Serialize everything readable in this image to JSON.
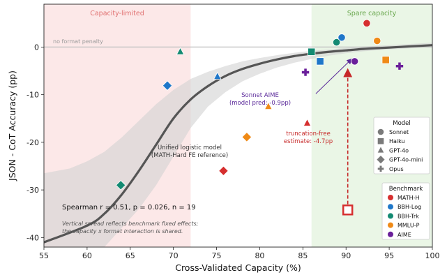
{
  "chart_data": {
    "type": "scatter",
    "xlabel": "Cross-Validated Capacity (%)",
    "ylabel": "JSON - CoT Accuracy (pp)",
    "xlim": [
      55,
      100
    ],
    "ylim": [
      -42,
      9
    ],
    "xticks": [
      55,
      60,
      65,
      70,
      75,
      80,
      85,
      90,
      95,
      100
    ],
    "yticks": [
      0,
      -10,
      -20,
      -30,
      -40
    ],
    "grid": false,
    "regions": [
      {
        "label": "Capacity-limited",
        "x_range": [
          55,
          72
        ],
        "color": "#fce8e8",
        "text_color": "#e07070"
      },
      {
        "label": "Spare capacity",
        "x_range": [
          86,
          100
        ],
        "color": "#eaf6e6",
        "text_color": "#6aa84f"
      }
    ],
    "reference_line": {
      "y": 0,
      "label": "no format penalty"
    },
    "fit_curve": {
      "label_line1": "Unified logistic model",
      "label_line2": "(MATH-Hard FE reference)",
      "points": [
        [
          55,
          -41
        ],
        [
          60,
          -37.5
        ],
        [
          62,
          -35
        ],
        [
          64,
          -31
        ],
        [
          66,
          -26
        ],
        [
          68,
          -20.5
        ],
        [
          70,
          -15
        ],
        [
          72,
          -11
        ],
        [
          74,
          -8.2
        ],
        [
          76,
          -6.1
        ],
        [
          78,
          -4.6
        ],
        [
          80,
          -3.5
        ],
        [
          82,
          -2.6
        ],
        [
          84,
          -1.9
        ],
        [
          86,
          -1.4
        ],
        [
          88,
          -1.0
        ],
        [
          90,
          -0.7
        ],
        [
          92,
          -0.4
        ],
        [
          94,
          -0.2
        ],
        [
          96,
          0.0
        ],
        [
          98,
          0.2
        ],
        [
          100,
          0.4
        ]
      ],
      "band_upper": [
        [
          55,
          -26.5
        ],
        [
          58,
          -25.5
        ],
        [
          60,
          -24
        ],
        [
          62,
          -22
        ],
        [
          64,
          -19
        ],
        [
          66,
          -15.5
        ],
        [
          68,
          -12
        ],
        [
          70,
          -9
        ],
        [
          72,
          -6.7
        ],
        [
          74,
          -5.2
        ],
        [
          76,
          -4
        ],
        [
          78,
          -3
        ],
        [
          80,
          -2.3
        ],
        [
          82,
          -1.7
        ],
        [
          84,
          -1.2
        ],
        [
          86,
          -0.8
        ],
        [
          88,
          -0.5
        ],
        [
          90,
          -0.2
        ],
        [
          92,
          0.1
        ],
        [
          94,
          0.3
        ],
        [
          96,
          0.5
        ],
        [
          98,
          0.7
        ],
        [
          100,
          0.9
        ]
      ],
      "band_lower": [
        [
          55,
          -42
        ],
        [
          60,
          -42
        ],
        [
          62,
          -42
        ],
        [
          63,
          -40
        ],
        [
          64,
          -38
        ],
        [
          66,
          -34
        ],
        [
          68,
          -29
        ],
        [
          70,
          -23
        ],
        [
          72,
          -17
        ],
        [
          74,
          -12.5
        ],
        [
          76,
          -9.5
        ],
        [
          78,
          -7.2
        ],
        [
          80,
          -5.6
        ],
        [
          82,
          -4.3
        ],
        [
          84,
          -3.3
        ],
        [
          86,
          -2.5
        ],
        [
          88,
          -1.8
        ],
        [
          90,
          -1.3
        ],
        [
          92,
          -0.9
        ],
        [
          94,
          -0.6
        ],
        [
          96,
          -0.4
        ],
        [
          98,
          -0.2
        ],
        [
          100,
          0.0
        ]
      ]
    },
    "models": [
      {
        "name": "Sonnet",
        "marker": "circle"
      },
      {
        "name": "Haiku",
        "marker": "square"
      },
      {
        "name": "GPT-4o",
        "marker": "triangle"
      },
      {
        "name": "GPT-4o-mini",
        "marker": "diamond"
      },
      {
        "name": "Opus",
        "marker": "plus"
      }
    ],
    "benchmarks": [
      {
        "name": "MATH-H",
        "color": "#d62f2f"
      },
      {
        "name": "BBH-Log",
        "color": "#1f77c9"
      },
      {
        "name": "BBH-Trk",
        "color": "#138a72"
      },
      {
        "name": "MMLU-P",
        "color": "#ef8a17"
      },
      {
        "name": "AIME",
        "color": "#6a1f9a"
      }
    ],
    "points": [
      {
        "x": 92.4,
        "y": 5.0,
        "model": "Sonnet",
        "benchmark": "MATH-H"
      },
      {
        "x": 89.5,
        "y": 2.0,
        "model": "Sonnet",
        "benchmark": "BBH-Log"
      },
      {
        "x": 88.9,
        "y": 1.0,
        "model": "Sonnet",
        "benchmark": "BBH-Trk"
      },
      {
        "x": 93.6,
        "y": 1.3,
        "model": "Sonnet",
        "benchmark": "MMLU-P"
      },
      {
        "x": 91.0,
        "y": -3.0,
        "model": "Sonnet",
        "benchmark": "AIME"
      },
      {
        "x": 86.0,
        "y": -1.0,
        "model": "Haiku",
        "benchmark": "BBH-Trk"
      },
      {
        "x": 87.0,
        "y": -3.0,
        "model": "Haiku",
        "benchmark": "BBH-Log"
      },
      {
        "x": 94.6,
        "y": -2.7,
        "model": "Haiku",
        "benchmark": "MMLU-P"
      },
      {
        "x": 90.2,
        "y": -34.2,
        "model": "Haiku",
        "benchmark": "MATH-H",
        "hollow": true
      },
      {
        "x": 70.8,
        "y": -1.0,
        "model": "GPT-4o",
        "benchmark": "BBH-Trk"
      },
      {
        "x": 75.1,
        "y": -6.2,
        "model": "GPT-4o",
        "benchmark": "BBH-Log"
      },
      {
        "x": 81.0,
        "y": -12.5,
        "model": "GPT-4o",
        "benchmark": "MMLU-P"
      },
      {
        "x": 85.5,
        "y": -16.0,
        "model": "GPT-4o",
        "benchmark": "MATH-H"
      },
      {
        "x": 69.3,
        "y": -8.1,
        "model": "GPT-4o-mini",
        "benchmark": "BBH-Log"
      },
      {
        "x": 78.5,
        "y": -18.9,
        "model": "GPT-4o-mini",
        "benchmark": "MMLU-P"
      },
      {
        "x": 75.8,
        "y": -26.0,
        "model": "GPT-4o-mini",
        "benchmark": "MATH-H"
      },
      {
        "x": 63.9,
        "y": -29.0,
        "model": "GPT-4o-mini",
        "benchmark": "BBH-Trk"
      },
      {
        "x": 85.3,
        "y": -5.3,
        "model": "Opus",
        "benchmark": "AIME"
      },
      {
        "x": 96.2,
        "y": -4.0,
        "model": "Opus",
        "benchmark": "AIME"
      }
    ],
    "annotations": [
      {
        "id": "sonnet-aime",
        "line1": "Sonnet AIME",
        "line2": "(model pred: -0.9pp)",
        "color": "#5b2a9a",
        "from": [
          86.5,
          -9.8
        ],
        "to": [
          90.6,
          -2.6
        ]
      },
      {
        "id": "truncation",
        "line1": "truncation-free",
        "line2": "estimate: -4.7pp",
        "color": "#c62828",
        "from": [
          90.2,
          -33
        ],
        "to": [
          90.2,
          -4.9
        ]
      }
    ],
    "stats_text": "Spearman r = 0.51, p = 0.026, n = 19",
    "note_line1": "Vertical spread reflects benchmark fixed effects;",
    "note_line2": "the capacity x format interaction is shared.",
    "legend_model_title": "Model",
    "legend_benchmark_title": "Benchmark"
  }
}
